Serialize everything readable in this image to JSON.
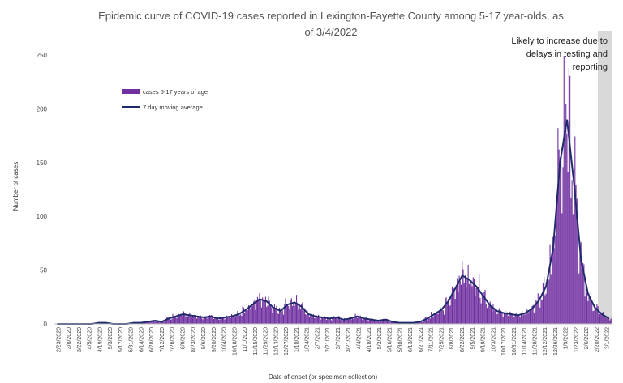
{
  "chart_data": {
    "type": "bar",
    "title_line1": "Epidemic curve of COVID-19 cases reported in Lexington-Fayette County among 5-17 year-olds, as",
    "title_line2": "of 3/4/2022",
    "xlabel": "Date of onset (or specimen collection)",
    "ylabel": "Number of cases",
    "ylim": [
      0,
      250
    ],
    "yticks": [
      0,
      50,
      100,
      150,
      200,
      250
    ],
    "x_tick_labels": [
      "2/23/2020",
      "3/8/2020",
      "3/22/2020",
      "4/5/2020",
      "4/19/2020",
      "5/3/2020",
      "5/17/2020",
      "5/31/2020",
      "6/14/2020",
      "6/28/2020",
      "7/12/2020",
      "7/26/2020",
      "8/9/2020",
      "8/23/2020",
      "9/6/2020",
      "9/20/2020",
      "10/4/2020",
      "10/18/2020",
      "11/1/2020",
      "11/15/2020",
      "11/29/2020",
      "12/13/2020",
      "12/27/2020",
      "1/10/2021",
      "1/24/2021",
      "2/7/2021",
      "2/21/2021",
      "3/7/2021",
      "3/21/2021",
      "4/4/2021",
      "4/18/2021",
      "5/2/2021",
      "5/16/2021",
      "5/30/2021",
      "6/13/2021",
      "6/27/2021",
      "7/11/2021",
      "7/25/2021",
      "8/8/2021",
      "8/22/2021",
      "9/5/2021",
      "9/19/2021",
      "10/3/2021",
      "10/17/2021",
      "10/31/2021",
      "11/14/2021",
      "11/28/2021",
      "12/12/2021",
      "12/26/2021",
      "1/9/2022",
      "1/23/2022",
      "2/6/2022",
      "2/20/2022",
      "3/1/2022"
    ],
    "grid": false,
    "legend_position": "upper-left",
    "legend": [
      {
        "name": "cases 5-17 years of age",
        "kind": "bar",
        "color": "#7030a0"
      },
      {
        "name": "7 day moving average",
        "kind": "line",
        "color": "#1f2a6b"
      }
    ],
    "annotation": "Likely to increase due to delays in testing and reporting",
    "annotation_lines": [
      "Likely to increase due to",
      "delays in testing and",
      "reporting"
    ],
    "series": [
      {
        "name": "cases 5-17 years of age",
        "weekly_average_values": [
          0,
          0,
          0,
          0,
          0,
          0,
          1,
          1,
          0,
          0,
          0,
          1,
          1,
          2,
          3,
          2,
          5,
          7,
          9,
          8,
          7,
          6,
          7,
          5,
          6,
          7,
          9,
          13,
          18,
          23,
          21,
          15,
          12,
          18,
          20,
          16,
          9,
          7,
          6,
          5,
          6,
          4,
          5,
          7,
          5,
          4,
          3,
          4,
          2,
          1,
          1,
          1,
          2,
          5,
          9,
          13,
          21,
          33,
          45,
          41,
          35,
          26,
          17,
          12,
          10,
          9,
          8,
          10,
          14,
          22,
          35,
          70,
          150,
          195,
          130,
          60,
          28,
          15,
          9,
          5
        ]
      },
      {
        "name": "7 day moving average",
        "values": [
          0,
          0,
          0,
          0,
          0,
          0,
          1,
          1,
          0,
          0,
          0,
          1,
          1,
          2,
          3,
          2,
          5,
          7,
          9,
          8,
          7,
          6,
          7,
          5,
          6,
          7,
          9,
          13,
          18,
          23,
          21,
          15,
          12,
          18,
          20,
          16,
          9,
          7,
          6,
          5,
          6,
          4,
          5,
          7,
          5,
          4,
          3,
          4,
          2,
          1,
          1,
          1,
          2,
          5,
          9,
          13,
          21,
          33,
          45,
          41,
          35,
          26,
          17,
          12,
          10,
          9,
          8,
          10,
          14,
          22,
          35,
          70,
          150,
          190,
          130,
          60,
          28,
          15,
          9,
          5
        ]
      }
    ],
    "colors": {
      "bars": "#7030a0",
      "line": "#1f2a6b",
      "shade": "#d9d9d9"
    }
  }
}
